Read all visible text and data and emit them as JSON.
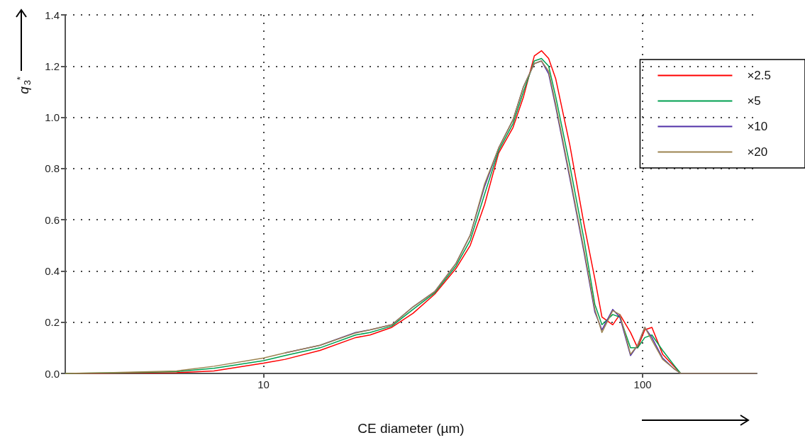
{
  "chart_data": {
    "type": "line",
    "xlabel": "CE diameter (µm)",
    "ylabel": "q$_{3}$$^{*}$",
    "x": [
      3,
      3.85,
      4.8,
      5.9,
      7.4,
      10,
      11.4,
      14.1,
      17.5,
      19.1,
      21.8,
      24.8,
      28.3,
      32.2,
      35.1,
      38.3,
      41.7,
      45.5,
      48.5,
      51.8,
      54.1,
      56.5,
      59,
      64.3,
      70.1,
      74.8,
      78.1,
      83.4,
      87.1,
      92.9,
      97,
      101.3,
      105.8,
      112.9,
      120.6,
      126,
      200
    ],
    "series": [
      {
        "name": "×2.5",
        "color": "#ff0000",
        "values": [
          0,
          0.001,
          0.002,
          0.003,
          0.01,
          0.04,
          0.055,
          0.09,
          0.14,
          0.15,
          0.18,
          0.235,
          0.31,
          0.41,
          0.5,
          0.66,
          0.86,
          0.96,
          1.08,
          1.24,
          1.26,
          1.23,
          1.15,
          0.89,
          0.58,
          0.37,
          0.22,
          0.19,
          0.23,
          0.16,
          0.1,
          0.17,
          0.18,
          0.075,
          0.03,
          0,
          0
        ]
      },
      {
        "name": "×5",
        "color": "#00a050",
        "values": [
          0,
          0.002,
          0.004,
          0.007,
          0.02,
          0.05,
          0.07,
          0.1,
          0.15,
          0.16,
          0.185,
          0.25,
          0.315,
          0.42,
          0.52,
          0.7,
          0.87,
          0.975,
          1.1,
          1.22,
          1.23,
          1.2,
          1.08,
          0.81,
          0.52,
          0.27,
          0.19,
          0.23,
          0.22,
          0.1,
          0.1,
          0.14,
          0.15,
          0.09,
          0.035,
          0,
          0
        ]
      },
      {
        "name": "×10",
        "color": "#5030a8",
        "values": [
          null,
          null,
          null,
          null,
          null,
          null,
          0.08,
          0.11,
          0.16,
          0.17,
          0.19,
          0.26,
          0.32,
          0.43,
          0.54,
          0.73,
          0.88,
          0.99,
          1.12,
          1.21,
          1.22,
          1.17,
          1.04,
          0.76,
          0.47,
          0.24,
          0.17,
          0.25,
          0.22,
          0.07,
          0.11,
          0.18,
          0.14,
          0.06,
          0.02,
          0,
          0
        ]
      },
      {
        "name": "×20",
        "color": "#9c8450",
        "values": [
          0,
          0.003,
          0.006,
          0.01,
          0.028,
          0.06,
          0.08,
          0.11,
          0.158,
          0.17,
          0.19,
          0.26,
          0.32,
          0.43,
          0.54,
          0.74,
          0.88,
          0.99,
          1.12,
          1.21,
          1.22,
          1.18,
          1.05,
          0.77,
          0.48,
          0.25,
          0.16,
          0.245,
          0.23,
          0.075,
          0.11,
          0.18,
          0.13,
          0.055,
          0.02,
          0,
          0
        ]
      }
    ],
    "xlim": [
      3,
      200
    ],
    "xticks": [
      10,
      100
    ],
    "ylim": [
      0,
      1.4
    ],
    "yticks": [
      {
        "value": 0,
        "label": "0.0"
      },
      {
        "value": 0.2,
        "label": "0.2"
      },
      {
        "value": 0.4,
        "label": "0.4"
      },
      {
        "value": 0.6,
        "label": "0.6"
      },
      {
        "value": 0.8,
        "label": "0.8"
      },
      {
        "value": 1,
        "label": "1.0"
      },
      {
        "value": 1.2,
        "label": "1.2"
      },
      {
        "value": 1.4,
        "label": "1.4"
      }
    ],
    "log": "x",
    "grid": true,
    "legend": "top right",
    "marker": "none",
    "line_style": "solid"
  }
}
